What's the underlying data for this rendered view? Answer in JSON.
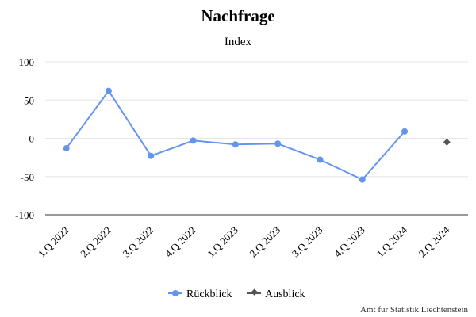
{
  "chart_data": {
    "type": "line",
    "title": "Nachfrage",
    "subtitle": "Index",
    "categories": [
      "1.Q 2022",
      "2.Q 2022",
      "3.Q 2022",
      "4.Q 2022",
      "1.Q 2023",
      "2.Q 2023",
      "3.Q 2023",
      "4.Q 2023",
      "1.Q 2024",
      "2.Q 2024"
    ],
    "ylim": [
      -100,
      100
    ],
    "yticks": [
      100,
      50,
      0,
      -50,
      -100
    ],
    "grid": true,
    "legend_position": "bottom-center",
    "series": [
      {
        "name": "Rückblick",
        "color": "#6495ED",
        "marker": "circle",
        "values": [
          -13,
          62,
          -23,
          -3,
          -8,
          -7,
          -28,
          -54,
          9,
          null
        ]
      },
      {
        "name": "Ausblick",
        "color": "#555555",
        "marker": "diamond",
        "values": [
          null,
          null,
          null,
          null,
          null,
          null,
          null,
          null,
          null,
          -5
        ]
      }
    ],
    "credit": "Amt für Statistik Liechtenstein"
  }
}
